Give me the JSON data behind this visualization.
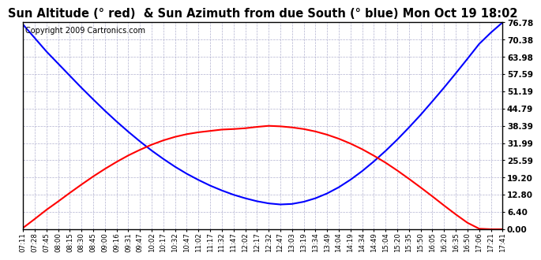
{
  "title": "Sun Altitude (° red)  & Sun Azimuth from due South (° blue) Mon Oct 19 18:02",
  "copyright": "Copyright 2009 Cartronics.com",
  "yticks": [
    0.0,
    6.4,
    12.8,
    19.2,
    25.59,
    31.99,
    38.39,
    44.79,
    51.19,
    57.59,
    63.98,
    70.38,
    76.78
  ],
  "ymax": 76.78,
  "ymin": 0.0,
  "x_labels": [
    "07:11",
    "07:28",
    "07:45",
    "08:00",
    "08:15",
    "08:30",
    "08:45",
    "09:00",
    "09:16",
    "09:31",
    "09:47",
    "10:02",
    "10:17",
    "10:32",
    "10:47",
    "11:02",
    "11:17",
    "11:32",
    "11:47",
    "12:02",
    "12:17",
    "12:32",
    "12:47",
    "13:03",
    "13:19",
    "13:34",
    "13:49",
    "14:04",
    "14:19",
    "14:34",
    "14:49",
    "15:04",
    "15:20",
    "15:35",
    "15:50",
    "16:05",
    "16:20",
    "16:35",
    "16:50",
    "17:06",
    "17:21",
    "17:41"
  ],
  "altitude_values": [
    0.5,
    3.8,
    7.2,
    10.3,
    13.5,
    16.6,
    19.6,
    22.4,
    25.0,
    27.4,
    29.5,
    31.4,
    33.0,
    34.3,
    35.3,
    36.0,
    36.5,
    37.0,
    37.2,
    37.5,
    38.0,
    38.39,
    38.2,
    37.8,
    37.2,
    36.3,
    35.1,
    33.6,
    31.8,
    29.7,
    27.3,
    24.7,
    21.8,
    18.7,
    15.5,
    12.2,
    8.8,
    5.5,
    2.4,
    0.2,
    0.0,
    0.0
  ],
  "azimuth_values": [
    76.0,
    71.0,
    66.0,
    61.5,
    57.0,
    52.5,
    48.2,
    44.0,
    40.0,
    36.2,
    32.6,
    29.2,
    26.1,
    23.2,
    20.6,
    18.3,
    16.2,
    14.4,
    12.8,
    11.5,
    10.4,
    9.6,
    9.2,
    9.4,
    10.2,
    11.5,
    13.3,
    15.6,
    18.4,
    21.6,
    25.2,
    29.1,
    33.3,
    37.8,
    42.5,
    47.5,
    52.6,
    57.9,
    63.3,
    68.8,
    73.0,
    76.78
  ],
  "altitude_color": "red",
  "azimuth_color": "blue",
  "bg_color": "#ffffff",
  "grid_color": "#aaaacc",
  "title_fontsize": 10.5,
  "copyright_fontsize": 7,
  "line_width": 1.5
}
